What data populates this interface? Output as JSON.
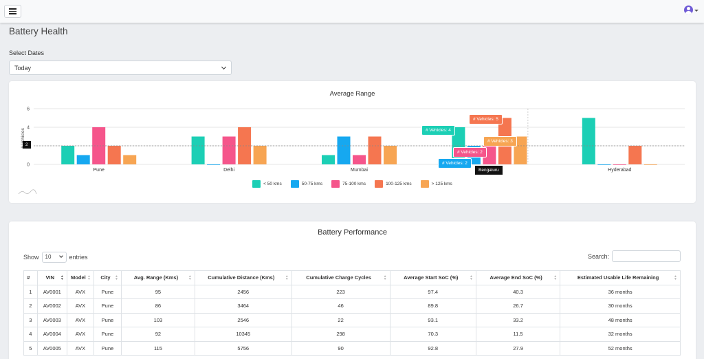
{
  "header": {
    "menu_icon": "hamburger-icon",
    "user_icon": "user-circle-icon"
  },
  "page": {
    "title": "Battery Health"
  },
  "filters": {
    "label": "Select Dates",
    "selected": "Today"
  },
  "chart_data": {
    "type": "bar",
    "title": "Average Range",
    "ylabel": "# Vehicles",
    "ylim": [
      0,
      6
    ],
    "yticks": [
      "0",
      "2",
      "4",
      "6"
    ],
    "grid": true,
    "legend_position": "bottom",
    "categories": [
      "Pune",
      "Delhi",
      "Mumbai",
      "Bengaluru",
      "Hyderabad"
    ],
    "series": [
      {
        "name": "< 50 kms",
        "color": "#1ccfb5",
        "values": [
          2,
          3,
          1,
          4,
          5
        ]
      },
      {
        "name": "50-75 kms",
        "color": "#16a8f0",
        "values": [
          1,
          0,
          3,
          2,
          0
        ]
      },
      {
        "name": "75-100 kms",
        "color": "#f5558b",
        "values": [
          4,
          3,
          1,
          2,
          0
        ]
      },
      {
        "name": "100-125 kms",
        "color": "#f57650",
        "values": [
          2,
          4,
          3,
          5,
          2
        ]
      },
      {
        "name": "> 125 kms",
        "color": "#f7a553",
        "values": [
          1,
          2,
          2,
          3,
          0
        ]
      }
    ],
    "tooltips": {
      "category": "Bengaluru",
      "hover_value": "2",
      "items": [
        {
          "label": "# Vehicles: 4",
          "color": "#1ccfb5"
        },
        {
          "label": "# Vehicles: 5",
          "color": "#f57650"
        },
        {
          "label": "# Vehicles: 3",
          "color": "#f7a553"
        },
        {
          "label": "# Vehicles: 2",
          "color": "#f5558b"
        },
        {
          "label": "# Vehicles: 2",
          "color": "#16a8f0"
        }
      ]
    }
  },
  "table": {
    "title": "Battery Performance",
    "show_label": "Show",
    "entries_value": "10",
    "entries_label": "entries",
    "search_label": "Search:",
    "columns": [
      "#",
      "VIN",
      "Model",
      "City",
      "Avg. Range (Kms)",
      "Cumulative Distance (Kms)",
      "Cumulative Charge Cycles",
      "Average Start SoC (%)",
      "Average End SoC (%)",
      "Estimated Usable Life Remaining"
    ],
    "rows": [
      [
        "1",
        "AV0001",
        "AVX",
        "Pune",
        "95",
        "2456",
        "223",
        "97.4",
        "40.3",
        "36 months"
      ],
      [
        "2",
        "AV0002",
        "AVX",
        "Pune",
        "86",
        "3464",
        "46",
        "89.8",
        "26.7",
        "30 months"
      ],
      [
        "3",
        "AV0003",
        "AVX",
        "Pune",
        "103",
        "2546",
        "22",
        "93.1",
        "33.2",
        "48 months"
      ],
      [
        "4",
        "AV0004",
        "AVX",
        "Pune",
        "92",
        "10345",
        "298",
        "70.3",
        "11.5",
        "32 months"
      ],
      [
        "5",
        "AV0005",
        "AVX",
        "Pune",
        "115",
        "5756",
        "90",
        "92.8",
        "27.9",
        "52 months"
      ]
    ]
  }
}
